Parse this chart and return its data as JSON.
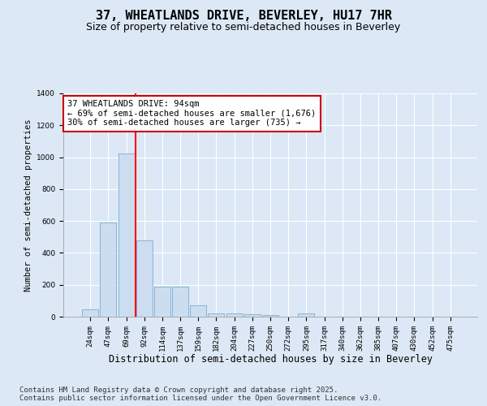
{
  "title": "37, WHEATLANDS DRIVE, BEVERLEY, HU17 7HR",
  "subtitle": "Size of property relative to semi-detached houses in Beverley",
  "xlabel": "Distribution of semi-detached houses by size in Beverley",
  "ylabel": "Number of semi-detached properties",
  "categories": [
    "24sqm",
    "47sqm",
    "69sqm",
    "92sqm",
    "114sqm",
    "137sqm",
    "159sqm",
    "182sqm",
    "204sqm",
    "227sqm",
    "250sqm",
    "272sqm",
    "295sqm",
    "317sqm",
    "340sqm",
    "362sqm",
    "385sqm",
    "407sqm",
    "430sqm",
    "452sqm",
    "475sqm"
  ],
  "values": [
    45,
    590,
    1025,
    480,
    190,
    190,
    70,
    20,
    20,
    15,
    10,
    0,
    20,
    0,
    0,
    0,
    0,
    0,
    0,
    0,
    0
  ],
  "bar_color": "#ccddf0",
  "bar_edge_color": "#7aadd4",
  "red_line_x": 2.5,
  "annotation_line1": "37 WHEATLANDS DRIVE: 94sqm",
  "annotation_line2": "← 69% of semi-detached houses are smaller (1,676)",
  "annotation_line3": "30% of semi-detached houses are larger (735) →",
  "annotation_box_facecolor": "#ffffff",
  "annotation_box_edgecolor": "#cc0000",
  "ylim_max": 1400,
  "bg_color": "#dce8f5",
  "footer1": "Contains HM Land Registry data © Crown copyright and database right 2025.",
  "footer2": "Contains public sector information licensed under the Open Government Licence v3.0.",
  "title_fontsize": 11,
  "subtitle_fontsize": 9,
  "annot_fontsize": 7.5,
  "footer_fontsize": 6.5,
  "ylabel_fontsize": 7.5,
  "xlabel_fontsize": 8.5,
  "tick_fontsize": 6.5
}
